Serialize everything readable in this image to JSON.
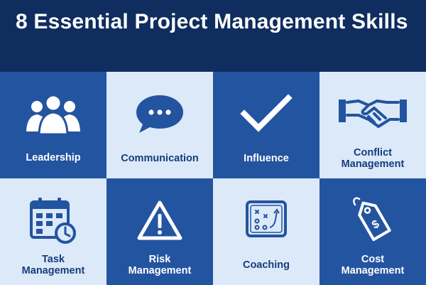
{
  "title": "8 Essential Project Management Skills",
  "colors": {
    "header_bg": "#0f2d5e",
    "dark_tile": "#2354a0",
    "light_tile": "#dce9f8",
    "dark_text": "#163d7a",
    "light_text": "#ffffff"
  },
  "skills": [
    {
      "label_line1": "Leadership",
      "label_line2": "",
      "icon": "people-icon"
    },
    {
      "label_line1": "Communication",
      "label_line2": "",
      "icon": "speech-bubble-icon"
    },
    {
      "label_line1": "Influence",
      "label_line2": "",
      "icon": "checkmark-icon"
    },
    {
      "label_line1": "Conflict",
      "label_line2": "Management",
      "icon": "handshake-icon"
    },
    {
      "label_line1": "Task",
      "label_line2": "Management",
      "icon": "calendar-clock-icon"
    },
    {
      "label_line1": "Risk",
      "label_line2": "Management",
      "icon": "warning-icon"
    },
    {
      "label_line1": "Coaching",
      "label_line2": "",
      "icon": "playbook-icon"
    },
    {
      "label_line1": "Cost",
      "label_line2": "Management",
      "icon": "price-tag-icon"
    }
  ]
}
